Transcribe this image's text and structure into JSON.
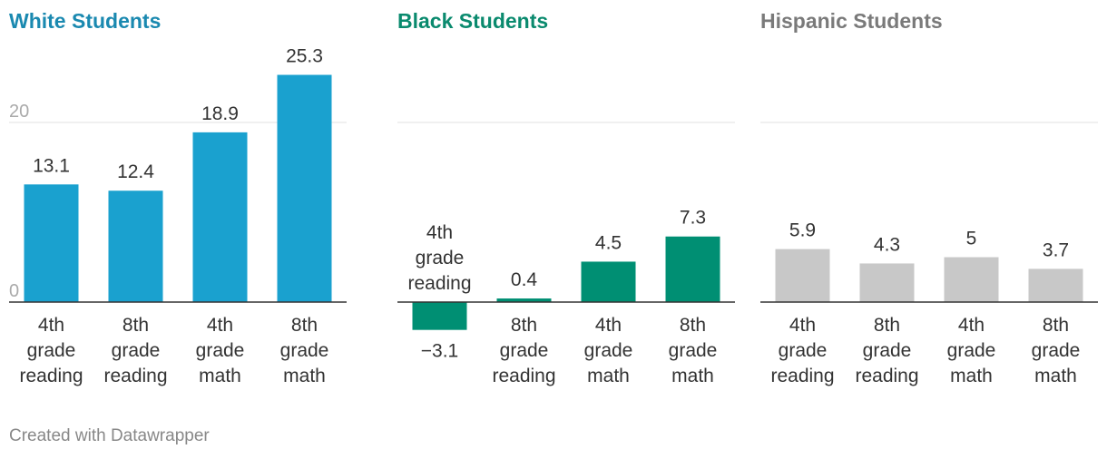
{
  "credit": "Created with Datawrapper",
  "chart_data": [
    {
      "type": "bar",
      "title": "White Students",
      "categories": [
        "4th grade reading",
        "8th grade reading",
        "4th grade math",
        "8th grade math"
      ],
      "values": [
        13.1,
        12.4,
        18.9,
        25.3
      ],
      "value_labels": [
        "13.1",
        "12.4",
        "18.9",
        "25.3"
      ],
      "ylim": [
        -5,
        27
      ],
      "yticks": [
        "0",
        "20"
      ],
      "gridlines": [
        0,
        20
      ],
      "color": "#1aa1cf",
      "title_color": "#1a89b0"
    },
    {
      "type": "bar",
      "title": "Black Students",
      "categories": [
        "4th grade reading",
        "8th grade reading",
        "4th grade math",
        "8th grade math"
      ],
      "values": [
        -3.1,
        0.4,
        4.5,
        7.3
      ],
      "value_labels": [
        "−3.1",
        "0.4",
        "4.5",
        "7.3"
      ],
      "ylim": [
        -5,
        27
      ],
      "yticks": [],
      "gridlines": [
        0,
        20
      ],
      "color": "#008f73",
      "title_color": "#0a8a6e"
    },
    {
      "type": "bar",
      "title": "Hispanic Students",
      "categories": [
        "4th grade reading",
        "8th grade reading",
        "4th grade math",
        "8th grade math"
      ],
      "values": [
        5.9,
        4.3,
        5,
        3.7
      ],
      "value_labels": [
        "5.9",
        "4.3",
        "5",
        "3.7"
      ],
      "ylim": [
        -5,
        27
      ],
      "yticks": [],
      "gridlines": [
        0,
        20
      ],
      "color": "#c8c8c8",
      "title_color": "#7a7a7a"
    }
  ]
}
